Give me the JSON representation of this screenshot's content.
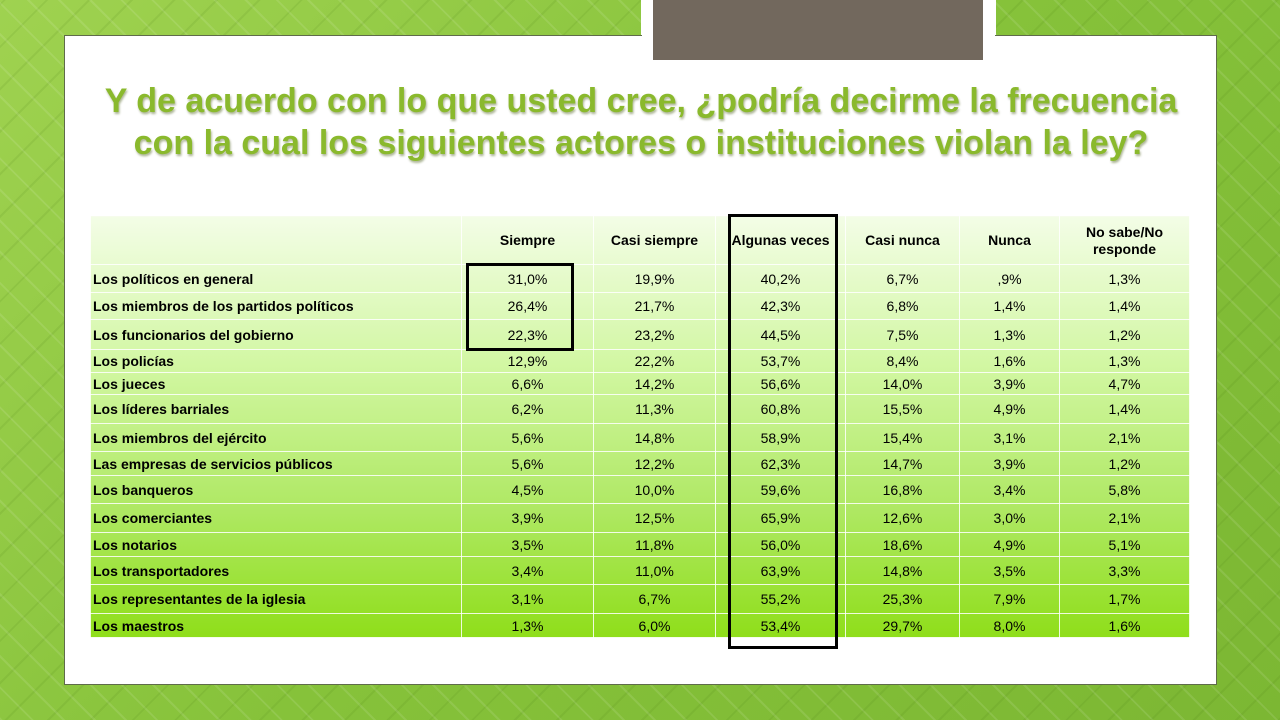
{
  "title": {
    "line1": "Y de acuerdo con lo que usted cree, ¿podría decirme la frecuencia",
    "line2": "con la cual los siguientes actores o instituciones violan la ley?"
  },
  "table": {
    "columns": [
      "",
      "Siempre",
      "Casi siempre",
      "Algunas veces",
      "Casi nunca",
      "Nunca",
      "No sabe/No responde"
    ],
    "rows": [
      {
        "label": "Los políticos en general",
        "values": [
          "31,0%",
          "19,9%",
          "40,2%",
          "6,7%",
          ",9%",
          "1,3%"
        ]
      },
      {
        "label": "Los miembros de los partidos políticos",
        "values": [
          "26,4%",
          "21,7%",
          "42,3%",
          "6,8%",
          "1,4%",
          "1,4%"
        ]
      },
      {
        "label": "Los funcionarios del gobierno",
        "values": [
          "22,3%",
          "23,2%",
          "44,5%",
          "7,5%",
          "1,3%",
          "1,2%"
        ]
      },
      {
        "label": "Los policías",
        "values": [
          "12,9%",
          "22,2%",
          "53,7%",
          "8,4%",
          "1,6%",
          "1,3%"
        ]
      },
      {
        "label": "Los jueces",
        "values": [
          "6,6%",
          "14,2%",
          "56,6%",
          "14,0%",
          "3,9%",
          "4,7%"
        ]
      },
      {
        "label": "Los líderes barriales",
        "values": [
          "6,2%",
          "11,3%",
          "60,8%",
          "15,5%",
          "4,9%",
          "1,4%"
        ]
      },
      {
        "label": "Los miembros del ejército",
        "values": [
          "5,6%",
          "14,8%",
          "58,9%",
          "15,4%",
          "3,1%",
          "2,1%"
        ]
      },
      {
        "label": "Las empresas de servicios públicos",
        "values": [
          "5,6%",
          "12,2%",
          "62,3%",
          "14,7%",
          "3,9%",
          "1,2%"
        ]
      },
      {
        "label": "Los banqueros",
        "values": [
          "4,5%",
          "10,0%",
          "59,6%",
          "16,8%",
          "3,4%",
          "5,8%"
        ]
      },
      {
        "label": "Los comerciantes",
        "values": [
          "3,9%",
          "12,5%",
          "65,9%",
          "12,6%",
          "3,0%",
          "2,1%"
        ]
      },
      {
        "label": "Los notarios",
        "values": [
          "3,5%",
          "11,8%",
          "56,0%",
          "18,6%",
          "4,9%",
          "5,1%"
        ]
      },
      {
        "label": "Los transportadores",
        "values": [
          "3,4%",
          "11,0%",
          "63,9%",
          "14,8%",
          "3,5%",
          "3,3%"
        ]
      },
      {
        "label": "Los representantes de la iglesia",
        "values": [
          "3,1%",
          "6,7%",
          "55,2%",
          "25,3%",
          "7,9%",
          "1,7%"
        ]
      },
      {
        "label": "Los maestros",
        "values": [
          "1,3%",
          "6,0%",
          "53,4%",
          "29,7%",
          "8,0%",
          "1,6%"
        ]
      }
    ]
  },
  "highlights": [
    {
      "column": "Siempre",
      "rows": "Los políticos en general – Los funcionarios del gobierno"
    },
    {
      "column": "Algunas veces",
      "rows": "all"
    }
  ],
  "colors": {
    "title": "#8ab92d",
    "background": "#8cc63f",
    "table_top": "#f3fde6",
    "table_bottom": "#8fde1a",
    "tab": "#72685d"
  }
}
